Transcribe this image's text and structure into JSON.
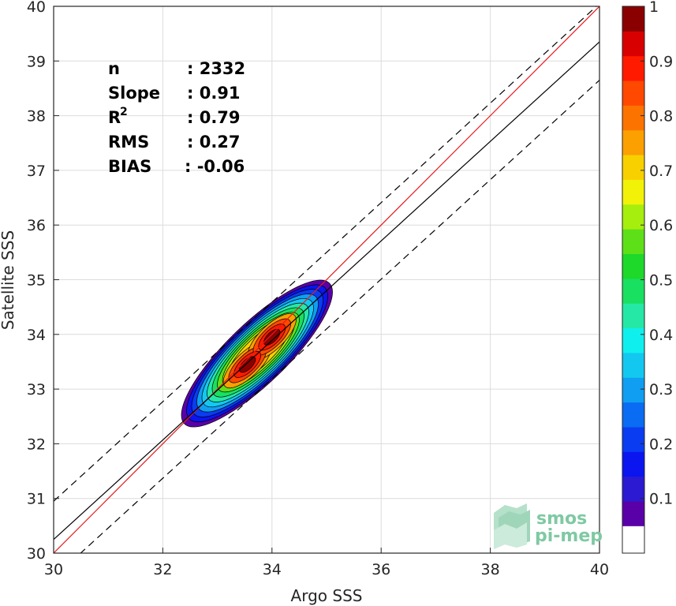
{
  "chart_data": {
    "type": "heatmap",
    "title": "",
    "xlabel": "Argo SSS",
    "ylabel": "Satellite SSS",
    "xlim": [
      30,
      40
    ],
    "ylim": [
      30,
      40
    ],
    "xticks": [
      "30",
      "32",
      "34",
      "36",
      "38",
      "40"
    ],
    "yticks": [
      "30",
      "31",
      "32",
      "33",
      "34",
      "35",
      "36",
      "37",
      "38",
      "39",
      "40"
    ],
    "grid": true,
    "stats": [
      {
        "label": "n",
        "value": ": 2332"
      },
      {
        "label": "Slope",
        "value": ": 0.91"
      },
      {
        "label": "R",
        "sup": "2",
        "value": ": 0.79"
      },
      {
        "label": "RMS",
        "value": ": 0.27"
      },
      {
        "label": "BIAS",
        "value": ": -0.06"
      }
    ],
    "lines": [
      {
        "kind": "identity",
        "color": "#e41a1c",
        "style": "solid",
        "slope": 1.0,
        "intercept": 0.0
      },
      {
        "kind": "regression",
        "color": "#000000",
        "style": "solid",
        "slope": 0.91,
        "intercept": 2.95
      },
      {
        "kind": "bound-upper",
        "color": "#000000",
        "style": "dashed",
        "slope": 0.91,
        "intercept": 3.65
      },
      {
        "kind": "bound-lower",
        "color": "#000000",
        "style": "dashed",
        "slope": 0.91,
        "intercept": 2.25
      }
    ],
    "density": {
      "centers": [
        {
          "x": 33.55,
          "y": 33.45,
          "weight": 1.0
        },
        {
          "x": 34.0,
          "y": 33.95,
          "weight": 1.0
        },
        {
          "x": 32.8,
          "y": 32.75,
          "weight": 0.35
        }
      ],
      "orientation_deg": 44,
      "outer_bounds": {
        "x": [
          32.3,
          34.75
        ],
        "y": [
          32.25,
          34.65
        ]
      }
    },
    "colorbar": {
      "min": 0.05,
      "max": 1.0,
      "ticks": [
        "0.1",
        "0.2",
        "0.3",
        "0.4",
        "0.5",
        "0.6",
        "0.7",
        "0.8",
        "0.9",
        "1"
      ],
      "colors": [
        "#5a00a8",
        "#2b1ad1",
        "#0a15f0",
        "#0a3cf2",
        "#0a6cf2",
        "#0f9ef2",
        "#13c8f0",
        "#0ff0ee",
        "#26e8a6",
        "#19e060",
        "#1ed82a",
        "#5ee018",
        "#a6ee0e",
        "#f2f208",
        "#f8d000",
        "#fba000",
        "#fd7300",
        "#ff4800",
        "#ff1a00",
        "#d80000",
        "#8a0000"
      ]
    }
  },
  "logo": {
    "line1": "smos",
    "line2": "pi-mep",
    "color": "#7fc9a3"
  }
}
